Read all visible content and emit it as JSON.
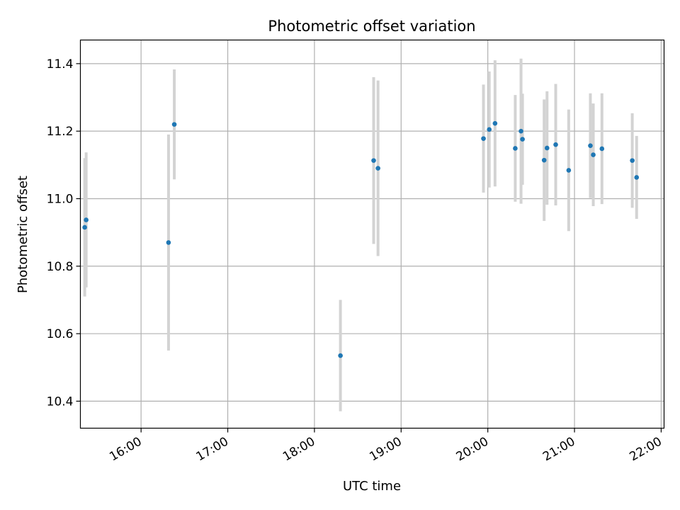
{
  "chart_data": {
    "type": "scatter",
    "title": "Photometric offset variation",
    "xlabel": "UTC time",
    "ylabel": "Photometric offset",
    "xlim": [
      "15:18",
      "22:02"
    ],
    "ylim": [
      10.32,
      11.47
    ],
    "x_ticks": [
      "16:00",
      "17:00",
      "18:00",
      "19:00",
      "20:00",
      "21:00",
      "22:00"
    ],
    "y_ticks": [
      10.4,
      10.6,
      10.8,
      11.0,
      11.2,
      11.4
    ],
    "grid": true,
    "colors": {
      "point": "#1f77b4",
      "errorbar": "#d3d3d3",
      "grid": "#b0b0b0"
    },
    "points": [
      {
        "x": "15:21",
        "y": 10.915,
        "err": 0.205
      },
      {
        "x": "15:22",
        "y": 10.937,
        "err": 0.2
      },
      {
        "x": "16:19",
        "y": 10.87,
        "err": 0.32
      },
      {
        "x": "16:23",
        "y": 11.22,
        "err": 0.163
      },
      {
        "x": "18:18",
        "y": 10.535,
        "err": 0.165
      },
      {
        "x": "18:41",
        "y": 11.113,
        "err": 0.247
      },
      {
        "x": "18:44",
        "y": 11.09,
        "err": 0.26
      },
      {
        "x": "19:57",
        "y": 11.178,
        "err": 0.16
      },
      {
        "x": "20:01",
        "y": 11.205,
        "err": 0.172
      },
      {
        "x": "20:05",
        "y": 11.223,
        "err": 0.187
      },
      {
        "x": "20:19",
        "y": 11.149,
        "err": 0.158
      },
      {
        "x": "20:23",
        "y": 11.2,
        "err": 0.215
      },
      {
        "x": "20:24",
        "y": 11.176,
        "err": 0.135
      },
      {
        "x": "20:39",
        "y": 11.114,
        "err": 0.18
      },
      {
        "x": "20:41",
        "y": 11.15,
        "err": 0.168
      },
      {
        "x": "20:47",
        "y": 11.16,
        "err": 0.18
      },
      {
        "x": "20:56",
        "y": 11.084,
        "err": 0.18
      },
      {
        "x": "21:11",
        "y": 11.157,
        "err": 0.155
      },
      {
        "x": "21:13",
        "y": 11.13,
        "err": 0.152
      },
      {
        "x": "21:19",
        "y": 11.148,
        "err": 0.164
      },
      {
        "x": "21:40",
        "y": 11.113,
        "err": 0.14
      },
      {
        "x": "21:43",
        "y": 11.063,
        "err": 0.123
      }
    ]
  }
}
